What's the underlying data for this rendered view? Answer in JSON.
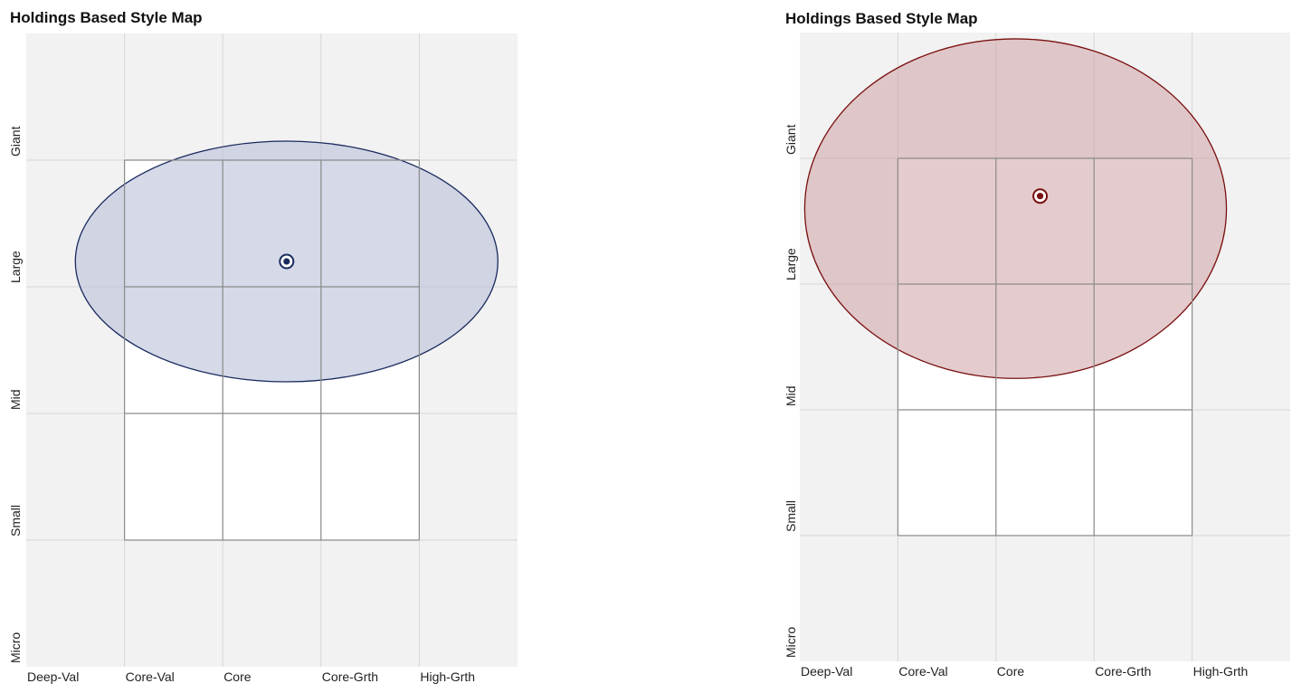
{
  "chart_data": [
    {
      "type": "scatter",
      "title": "Holdings Based Style Map",
      "style_categories": [
        "Deep-Val",
        "Core-Val",
        "Core",
        "Core-Grth",
        "High-Grth"
      ],
      "size_categories": [
        "Giant",
        "Large",
        "Mid",
        "Small",
        "Micro"
      ],
      "xlim": [
        0,
        5
      ],
      "ylim": [
        0,
        5
      ],
      "style_box": {
        "x": [
          1,
          4
        ],
        "y": [
          1,
          4
        ]
      },
      "centroid": {
        "x": 2.65,
        "y": 3.2
      },
      "ellipse": {
        "cx": 2.65,
        "cy": 3.2,
        "rx": 2.15,
        "ry": 0.95
      },
      "color": "#1a2a5e",
      "fill_color": "#b9c0d8"
    },
    {
      "type": "scatter",
      "title": "Holdings Based Style Map",
      "style_categories": [
        "Deep-Val",
        "Core-Val",
        "Core",
        "Core-Grth",
        "High-Grth"
      ],
      "size_categories": [
        "Giant",
        "Large",
        "Mid",
        "Small",
        "Micro"
      ],
      "xlim": [
        0,
        5
      ],
      "ylim": [
        0,
        5
      ],
      "style_box": {
        "x": [
          1,
          4
        ],
        "y": [
          1,
          4
        ]
      },
      "centroid": {
        "x": 2.45,
        "y": 3.7
      },
      "ellipse": {
        "cx": 2.2,
        "cy": 3.6,
        "rx": 2.15,
        "ry": 1.35
      },
      "color": "#7a1010",
      "fill_color": "#d2a9ac"
    }
  ]
}
